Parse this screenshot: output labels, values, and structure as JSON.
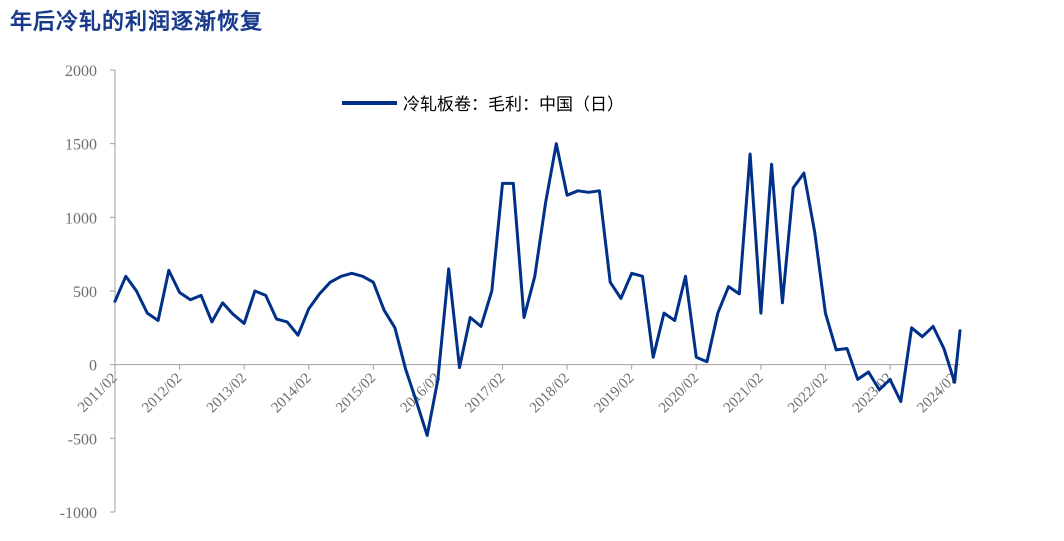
{
  "title": "年后冷轧的利润逐渐恢复",
  "chart_data": {
    "type": "line",
    "ylim": [
      -1000,
      2000
    ],
    "yticks": [
      -1000,
      -500,
      0,
      500,
      1000,
      1500,
      2000
    ],
    "xticks": [
      "2011/02",
      "2012/02",
      "2013/02",
      "2014/02",
      "2015/02",
      "2016/02",
      "2017/02",
      "2018/02",
      "2019/02",
      "2020/02",
      "2021/02",
      "2022/02",
      "2023/02",
      "2024/02"
    ],
    "grid": false,
    "legend_position": "top",
    "color": "#003087",
    "series": [
      {
        "name": "冷轧板卷：毛利：中国（日）",
        "x": [
          "2011-02",
          "2011-04",
          "2011-06",
          "2011-08",
          "2011-10",
          "2011-12",
          "2012-02",
          "2012-04",
          "2012-06",
          "2012-08",
          "2012-10",
          "2012-12",
          "2013-02",
          "2013-04",
          "2013-06",
          "2013-08",
          "2013-10",
          "2013-12",
          "2014-02",
          "2014-04",
          "2014-06",
          "2014-08",
          "2014-10",
          "2014-12",
          "2015-02",
          "2015-04",
          "2015-06",
          "2015-08",
          "2015-10",
          "2015-12",
          "2016-02",
          "2016-04",
          "2016-06",
          "2016-08",
          "2016-10",
          "2016-12",
          "2017-02",
          "2017-04",
          "2017-06",
          "2017-08",
          "2017-10",
          "2017-12",
          "2018-02",
          "2018-04",
          "2018-06",
          "2018-08",
          "2018-10",
          "2018-12",
          "2019-02",
          "2019-04",
          "2019-06",
          "2019-08",
          "2019-10",
          "2019-12",
          "2020-02",
          "2020-04",
          "2020-06",
          "2020-08",
          "2020-10",
          "2020-12",
          "2021-02",
          "2021-04",
          "2021-06",
          "2021-08",
          "2021-10",
          "2021-12",
          "2022-02",
          "2022-04",
          "2022-06",
          "2022-08",
          "2022-10",
          "2022-12",
          "2023-02",
          "2023-04",
          "2023-06",
          "2023-08",
          "2023-10",
          "2023-12",
          "2024-02",
          "2024-03"
        ],
        "values": [
          430,
          600,
          500,
          350,
          300,
          640,
          490,
          440,
          470,
          290,
          420,
          340,
          280,
          500,
          470,
          310,
          290,
          200,
          380,
          480,
          560,
          600,
          620,
          600,
          560,
          370,
          250,
          -30,
          -250,
          -480,
          -100,
          650,
          -20,
          320,
          260,
          500,
          1230,
          1230,
          320,
          600,
          1100,
          1500,
          1150,
          1180,
          1170,
          1180,
          560,
          450,
          620,
          600,
          50,
          350,
          300,
          600,
          50,
          20,
          350,
          530,
          480,
          1430,
          350,
          1360,
          420,
          1200,
          1300,
          900,
          350,
          100,
          110,
          -100,
          -50,
          -170,
          -100,
          -250,
          250,
          190,
          260,
          110,
          -120,
          230
        ]
      }
    ]
  }
}
